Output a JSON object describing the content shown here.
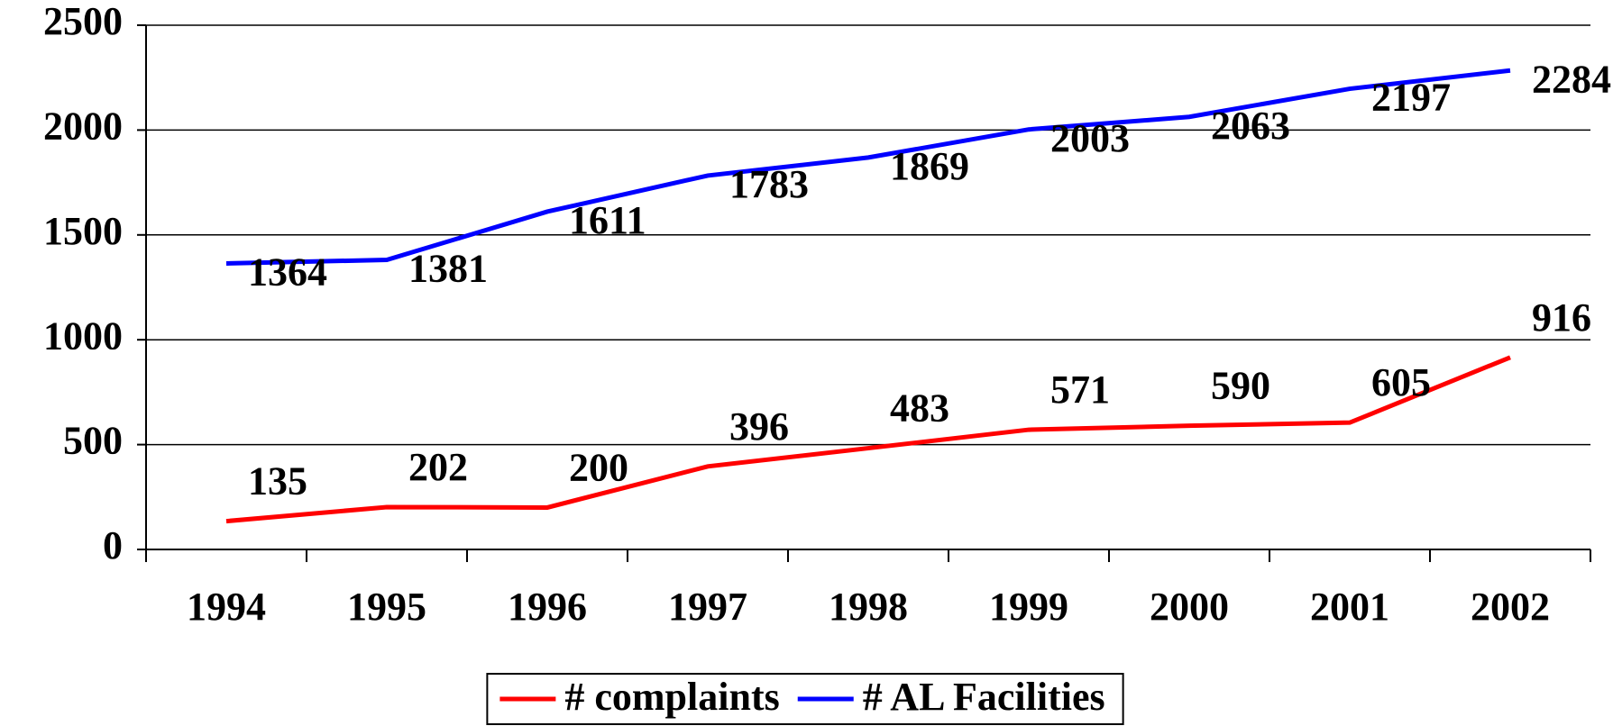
{
  "chart_data": {
    "type": "line",
    "categories": [
      "1994",
      "1995",
      "1996",
      "1997",
      "1998",
      "1999",
      "2000",
      "2001",
      "2002"
    ],
    "series": [
      {
        "name": "# complaints",
        "color": "#ff0000",
        "values": [
          135,
          202,
          200,
          396,
          483,
          571,
          590,
          605,
          916
        ]
      },
      {
        "name": "# AL Facilities",
        "color": "#0000ff",
        "values": [
          1364,
          1381,
          1611,
          1783,
          1869,
          2003,
          2063,
          2197,
          2284
        ]
      }
    ],
    "ylim": [
      0,
      2500
    ],
    "yticks": [
      0,
      500,
      1000,
      1500,
      2000,
      2500
    ],
    "grid": true,
    "legend": "bottom"
  }
}
